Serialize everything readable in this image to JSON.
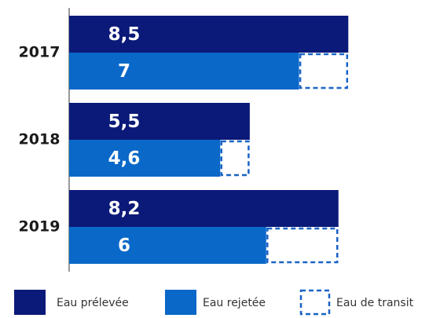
{
  "chart_data": {
    "type": "bar",
    "orientation": "horizontal",
    "categories": [
      "2017",
      "2018",
      "2019"
    ],
    "xlim": [
      0,
      10.5
    ],
    "series": [
      {
        "name": "Eau prélevée",
        "color": "#0b1a78",
        "values": [
          8.5,
          5.5,
          8.2
        ],
        "value_labels": [
          "8,5",
          "5,5",
          "8,2"
        ]
      },
      {
        "name": "Eau rejetée",
        "color": "#0a68c8",
        "values": [
          7,
          4.6,
          6
        ],
        "value_labels": [
          "7",
          "4,6",
          "6"
        ]
      },
      {
        "name": "Eau de transit",
        "color": "#1a63c6",
        "style": "dashed",
        "stacked_on": "Eau rejetée",
        "values": [
          1.5,
          0.9,
          2.2
        ]
      }
    ]
  }
}
